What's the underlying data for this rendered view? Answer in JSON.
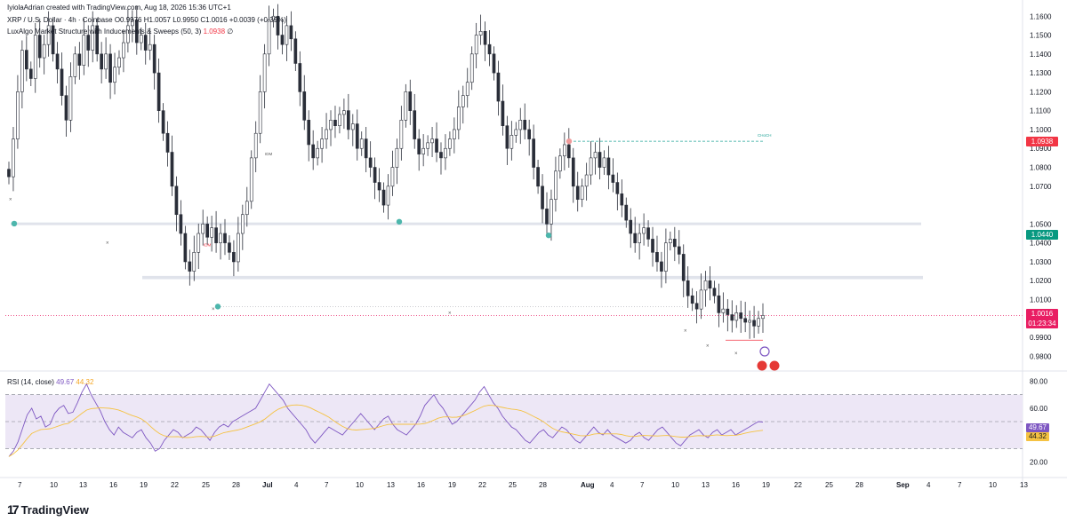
{
  "header": {
    "created": "IyiolaAdrian created with TradingView.com, Aug 18, 2026 15:36 UTC+1",
    "symbol": "XRP / U.S. Dollar · 4h · Coinbase",
    "ohlc": "O0.9976  H1.0057  L0.9950  C1.0016  +0.0039 (+0.39%)",
    "indicator": "LuxAlgo Market Structure with Inducements & Sweeps (50, 3)",
    "indicator_value": "1.0938",
    "indicator_suffix": "∅"
  },
  "price_tags": {
    "level_high": "1.0938",
    "level_mid": "1.0440",
    "last_price": "1.0016",
    "countdown": "01:23:34"
  },
  "annotations": {
    "choch": "CHoCH",
    "idm": "IDM",
    "idm_red": "IDM"
  },
  "rsi": {
    "title": "RSI (14, close)",
    "value": "49.67",
    "ma_value": "44.32",
    "tag_rsi": "49.67",
    "tag_ma": "44.32",
    "tag_hidden": "40.00",
    "levels": [
      "80.00",
      "60.00",
      "20.00"
    ]
  },
  "brand": "TradingView",
  "colors": {
    "candle": "#2a2e39",
    "rsi_line": "#7e57c2",
    "rsi_ma": "#f5c242",
    "rsi_band": "#ede7f6",
    "zone": "#e0e3eb",
    "teal": "#4db6ac",
    "red_tag": "#f23645",
    "green_tag": "#089981",
    "last_tag": "#e91e63",
    "choch_line": "#26a69a"
  },
  "chart_data": {
    "type": "candlestick",
    "title": "XRP / U.S. Dollar · 4h · Coinbase",
    "y_axis_ticks": [
      "1.1600",
      "1.1500",
      "1.1400",
      "1.1300",
      "1.1200",
      "1.1100",
      "1.1000",
      "1.0900",
      "1.0800",
      "1.0700",
      "1.0500",
      "1.0400",
      "1.0300",
      "1.0200",
      "1.0100",
      "0.9900",
      "0.9800"
    ],
    "ylim": [
      0.975,
      1.162
    ],
    "x_axis_ticks": [
      "7",
      "10",
      "13",
      "16",
      "19",
      "22",
      "25",
      "28",
      "Jul",
      "4",
      "7",
      "10",
      "13",
      "16",
      "19",
      "22",
      "25",
      "28",
      "Aug",
      "4",
      "7",
      "10",
      "13",
      "16",
      "19",
      "22",
      "25",
      "28",
      "Sep",
      "4",
      "7",
      "10",
      "13"
    ],
    "last_close": 1.0016,
    "ohlc": {
      "open": 0.9976,
      "high": 1.0057,
      "low": 0.995,
      "close": 1.0016
    },
    "levels": {
      "choch_level": 1.0938,
      "support_zone_upper": [
        1.0494,
        1.0508
      ],
      "support_zone_lower": [
        1.0208,
        1.0225
      ]
    },
    "close_series": [
      1.075,
      1.095,
      1.12,
      1.142,
      1.132,
      1.127,
      1.15,
      1.138,
      1.145,
      1.155,
      1.14,
      1.132,
      1.118,
      1.105,
      1.128,
      1.14,
      1.134,
      1.15,
      1.142,
      1.155,
      1.14,
      1.132,
      1.14,
      1.125,
      1.133,
      1.138,
      1.146,
      1.155,
      1.158,
      1.146,
      1.15,
      1.142,
      1.145,
      1.13,
      1.11,
      1.098,
      1.088,
      1.07,
      1.055,
      1.045,
      1.03,
      1.025,
      1.035,
      1.045,
      1.05,
      1.043,
      1.048,
      1.04,
      1.045,
      1.04,
      1.035,
      1.03,
      1.045,
      1.055,
      1.062,
      1.085,
      1.098,
      1.12,
      1.14,
      1.158,
      1.16,
      1.15,
      1.145,
      1.155,
      1.148,
      1.135,
      1.12,
      1.105,
      1.092,
      1.085,
      1.09,
      1.095,
      1.1,
      1.105,
      1.102,
      1.108,
      1.11,
      1.1,
      1.103,
      1.09,
      1.095,
      1.085,
      1.08,
      1.072,
      1.068,
      1.06,
      1.07,
      1.08,
      1.09,
      1.105,
      1.12,
      1.11,
      1.095,
      1.087,
      1.09,
      1.093,
      1.095,
      1.088,
      1.085,
      1.09,
      1.095,
      1.1,
      1.112,
      1.118,
      1.125,
      1.14,
      1.15,
      1.152,
      1.145,
      1.14,
      1.13,
      1.115,
      1.102,
      1.09,
      1.097,
      1.1,
      1.105,
      1.1,
      1.095,
      1.08,
      1.07,
      1.058,
      1.05,
      1.063,
      1.078,
      1.086,
      1.092,
      1.085,
      1.07,
      1.063,
      1.07,
      1.076,
      1.085,
      1.088,
      1.08,
      1.085,
      1.076,
      1.072,
      1.066,
      1.06,
      1.052,
      1.045,
      1.04,
      1.045,
      1.048,
      1.042,
      1.035,
      1.03,
      1.025,
      1.04,
      1.042,
      1.038,
      1.034,
      1.02,
      1.012,
      1.008,
      1.005,
      1.015,
      1.02,
      1.016,
      1.012,
      1.003,
      1.005,
      1.002,
      0.999,
      1.003,
      1.0,
      0.998,
      0.999,
      0.996,
      1.0,
      1.0016
    ],
    "rsi_series": [
      24,
      28,
      35,
      45,
      55,
      60,
      52,
      54,
      46,
      48,
      56,
      60,
      62,
      56,
      57,
      64,
      72,
      78,
      70,
      64,
      58,
      50,
      44,
      40,
      46,
      42,
      40,
      38,
      42,
      44,
      38,
      34,
      28,
      30,
      36,
      40,
      44,
      42,
      38,
      40,
      42,
      46,
      44,
      40,
      36,
      42,
      46,
      48,
      46,
      50,
      52,
      54,
      56,
      58,
      60,
      66,
      72,
      78,
      74,
      70,
      66,
      60,
      56,
      52,
      48,
      44,
      38,
      34,
      38,
      42,
      46,
      44,
      42,
      40,
      44,
      48,
      52,
      56,
      52,
      48,
      44,
      48,
      52,
      54,
      48,
      44,
      42,
      40,
      44,
      48,
      54,
      62,
      66,
      70,
      64,
      60,
      54,
      48,
      50,
      54,
      58,
      62,
      66,
      72,
      76,
      70,
      64,
      60,
      54,
      50,
      46,
      44,
      40,
      36,
      34,
      38,
      42,
      44,
      40,
      38,
      42,
      46,
      44,
      40,
      36,
      34,
      38,
      42,
      46,
      42,
      40,
      44,
      40,
      38,
      36,
      34,
      36,
      40,
      42,
      38,
      36,
      40,
      44,
      46,
      42,
      38,
      34,
      32,
      36,
      40,
      42,
      44,
      40,
      38,
      42,
      44,
      40,
      42,
      44,
      40,
      42,
      44,
      46,
      48,
      50,
      49.67
    ],
    "rsi_levels": [
      80,
      60,
      20
    ],
    "rsi_ylim": [
      15,
      85
    ]
  }
}
